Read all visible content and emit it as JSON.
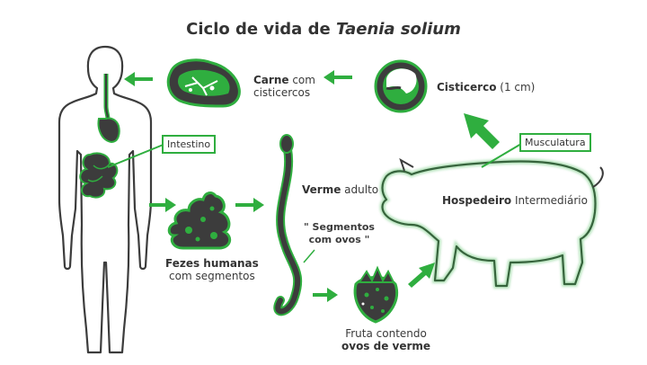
{
  "title": {
    "prefix": "Ciclo de vida de",
    "species": "Taenia solium"
  },
  "labels": {
    "carne_bold": "Carne",
    "carne_rest": " com",
    "carne_line2": "cisticercos",
    "cisticerco_bold": "Cisticerco",
    "cisticerco_rest": " (1 cm)",
    "intestino": "Intestino",
    "musculatura": "Musculatura",
    "verme_bold": "Verme",
    "verme_rest": " adulto",
    "segmentos_line1": "\" Segmentos",
    "segmentos_line2": "com ovos \"",
    "hospedeiro_bold": "Hospedeiro",
    "hospedeiro_rest": " Intermediário",
    "fezes_line1": "Fezes humanas",
    "fezes_line2": "com segmentos",
    "fruta_line1": "Fruta contendo",
    "fruta_line2": "ovos de verme"
  },
  "colors": {
    "accent": "#2fae3f",
    "dark": "#3c3c3c",
    "arrow": "#2fae3f"
  }
}
